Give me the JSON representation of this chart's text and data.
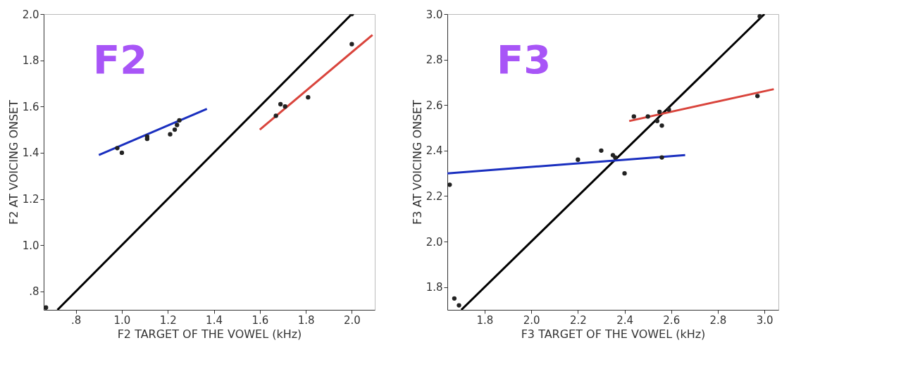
{
  "chart_data": [
    {
      "type": "scatter",
      "xlabel": "F2 TARGET OF THE VOWEL (kHz)",
      "ylabel": "F2 AT VOICING ONSET",
      "annotations": [
        "F2"
      ],
      "xlim": [
        0.66,
        2.1
      ],
      "ylim": [
        0.72,
        2.0
      ],
      "xticks": [
        {
          "value": 0.8,
          "label": ".8"
        },
        {
          "value": 1.0,
          "label": "1.0"
        },
        {
          "value": 1.2,
          "label": "1.2"
        },
        {
          "value": 1.4,
          "label": "1.4"
        },
        {
          "value": 1.6,
          "label": "1.6"
        },
        {
          "value": 1.8,
          "label": "1.8"
        },
        {
          "value": 2.0,
          "label": "2.0"
        }
      ],
      "yticks": [
        {
          "value": 0.8,
          "label": ".8"
        },
        {
          "value": 1.0,
          "label": "1.0"
        },
        {
          "value": 1.2,
          "label": "1.2"
        },
        {
          "value": 1.4,
          "label": "1.4"
        },
        {
          "value": 1.6,
          "label": "1.6"
        },
        {
          "value": 1.8,
          "label": "1.8"
        },
        {
          "value": 2.0,
          "label": "2.0"
        }
      ],
      "grid": false,
      "series": [
        {
          "type": "line",
          "color": "#000000",
          "x": [
            0.72,
            2.0
          ],
          "values": [
            0.72,
            2.0
          ]
        },
        {
          "type": "line",
          "color": "#1a2fbf",
          "x": [
            0.9,
            1.37
          ],
          "values": [
            1.39,
            1.59
          ]
        },
        {
          "type": "line",
          "color": "#d9443c",
          "x": [
            1.6,
            2.09
          ],
          "values": [
            1.5,
            1.91
          ]
        },
        {
          "marker": "circle",
          "color": "#222222",
          "x": [
            0.67,
            0.98,
            1.0,
            1.11,
            1.11,
            1.21,
            1.23,
            1.24,
            1.25,
            1.67,
            1.69,
            1.71,
            1.81,
            2.0,
            2.0
          ],
          "values": [
            0.73,
            1.42,
            1.4,
            1.47,
            1.46,
            1.48,
            1.5,
            1.52,
            1.54,
            1.56,
            1.61,
            1.6,
            1.64,
            1.87,
            2.0
          ]
        }
      ]
    },
    {
      "type": "scatter",
      "xlabel": "F3 TARGET OF THE VOWEL (kHz)",
      "ylabel": "F3 AT VOICING ONSET",
      "annotations": [
        "F3"
      ],
      "xlim": [
        1.64,
        3.06
      ],
      "ylim": [
        1.7,
        3.0
      ],
      "xticks": [
        1.8,
        {
          "value": 2.0,
          "label": "2.0"
        },
        2.2,
        2.4,
        2.6,
        2.8,
        {
          "value": 3.0,
          "label": "3.0"
        }
      ],
      "yticks": [
        1.8,
        {
          "value": 2.0,
          "label": "2.0"
        },
        2.2,
        2.4,
        2.6,
        2.8,
        {
          "value": 3.0,
          "label": "3.0"
        }
      ],
      "grid": false,
      "series": [
        {
          "type": "line",
          "color": "#000000",
          "x": [
            1.7,
            3.0
          ],
          "values": [
            1.7,
            3.0
          ]
        },
        {
          "type": "line",
          "color": "#1a2fbf",
          "x": [
            1.64,
            2.66
          ],
          "values": [
            2.3,
            2.38
          ]
        },
        {
          "type": "line",
          "color": "#d9443c",
          "x": [
            2.42,
            3.04
          ],
          "values": [
            2.53,
            2.67
          ]
        },
        {
          "marker": "circle",
          "color": "#222222",
          "x": [
            1.67,
            1.69,
            1.65,
            2.2,
            2.3,
            2.35,
            2.36,
            2.4,
            2.56,
            2.44,
            2.5,
            2.55,
            2.54,
            2.56,
            2.59,
            2.97,
            2.98
          ],
          "values": [
            1.75,
            1.72,
            2.25,
            2.36,
            2.4,
            2.38,
            2.37,
            2.3,
            2.37,
            2.55,
            2.55,
            2.57,
            2.53,
            2.51,
            2.58,
            2.64,
            2.99
          ]
        }
      ]
    }
  ]
}
